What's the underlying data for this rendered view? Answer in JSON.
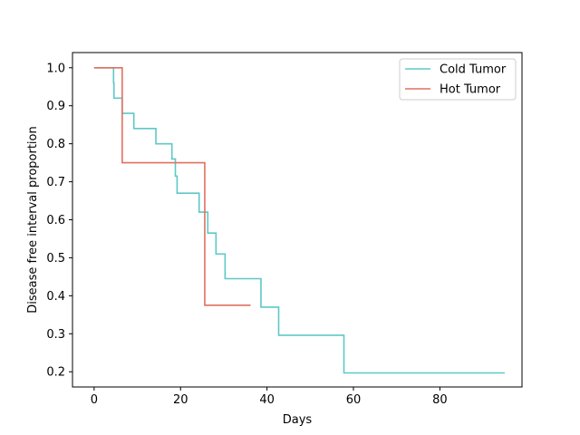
{
  "chart_data": {
    "type": "line",
    "title": "",
    "xlabel": "Days",
    "ylabel": "Disease free interval proportion",
    "xlim": [
      -5,
      99
    ],
    "ylim": [
      0.16,
      1.04
    ],
    "xticks": [
      0,
      20,
      40,
      60,
      80
    ],
    "yticks": [
      0.2,
      0.3,
      0.4,
      0.5,
      0.6,
      0.7,
      0.8,
      0.9,
      1.0
    ],
    "ytick_labels": [
      "0.2",
      "0.3",
      "0.4",
      "0.5",
      "0.6",
      "0.7",
      "0.8",
      "0.9",
      "1.0"
    ],
    "grid": false,
    "legend": "top-right",
    "series": [
      {
        "name": "Cold Tumor",
        "color": "#5ec8c8",
        "step": "post",
        "points": [
          [
            0,
            1.0
          ],
          [
            4.5,
            0.96
          ],
          [
            4.6,
            0.92
          ],
          [
            6.5,
            0.88
          ],
          [
            9.2,
            0.84
          ],
          [
            14.3,
            0.8
          ],
          [
            18.0,
            0.76
          ],
          [
            18.8,
            0.715
          ],
          [
            19.2,
            0.67
          ],
          [
            24.3,
            0.62
          ],
          [
            26.3,
            0.565
          ],
          [
            28.2,
            0.51
          ],
          [
            30.3,
            0.445
          ],
          [
            38.6,
            0.37
          ],
          [
            42.7,
            0.296
          ],
          [
            57.8,
            0.197
          ],
          [
            95.0,
            0.197
          ]
        ]
      },
      {
        "name": "Hot Tumor",
        "color": "#e07060",
        "step": "post",
        "points": [
          [
            0,
            1.0
          ],
          [
            6.5,
            0.75
          ],
          [
            25.6,
            0.375
          ],
          [
            36.2,
            0.375
          ]
        ]
      }
    ]
  }
}
